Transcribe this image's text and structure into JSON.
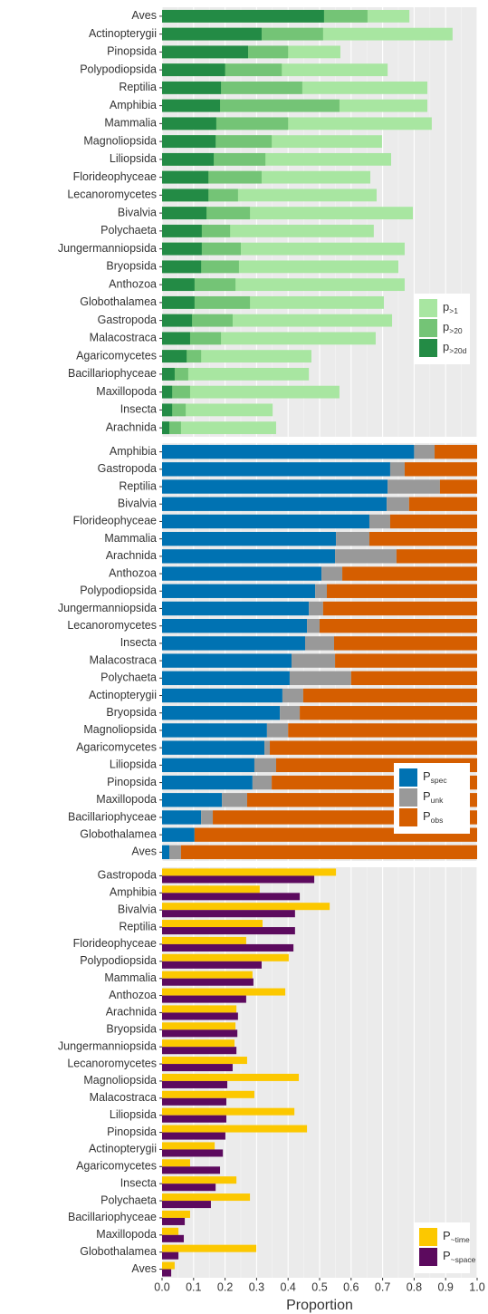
{
  "chart_data": [
    {
      "type": "bar",
      "barmode": "overlay",
      "legend": "bottom-right",
      "grid": true,
      "xlim": [
        0,
        1
      ],
      "categories": [
        "Aves",
        "Actinopterygii",
        "Pinopsida",
        "Polypodiopsida",
        "Reptilia",
        "Amphibia",
        "Mammalia",
        "Magnoliopsida",
        "Liliopsida",
        "Florideophyceae",
        "Lecanoromycetes",
        "Bivalvia",
        "Polychaeta",
        "Jungermanniopsida",
        "Bryopsida",
        "Anthozoa",
        "Globothalamea",
        "Gastropoda",
        "Malacostraca",
        "Agaricomycetes",
        "Bacillariophyceae",
        "Maxillopoda",
        "Insecta",
        "Arachnida"
      ],
      "series": [
        {
          "name": "p>1",
          "color": "#a8e6a1",
          "values": [
            0.785,
            0.922,
            0.566,
            0.716,
            0.842,
            0.842,
            0.856,
            0.698,
            0.727,
            0.661,
            0.681,
            0.796,
            0.672,
            0.77,
            0.75,
            0.77,
            0.704,
            0.73,
            0.678,
            0.474,
            0.466,
            0.563,
            0.351,
            0.362
          ]
        },
        {
          "name": "p>20",
          "color": "#74c476",
          "values": [
            0.652,
            0.511,
            0.4,
            0.38,
            0.445,
            0.563,
            0.4,
            0.348,
            0.328,
            0.316,
            0.241,
            0.279,
            0.216,
            0.25,
            0.244,
            0.233,
            0.279,
            0.224,
            0.187,
            0.124,
            0.083,
            0.089,
            0.075,
            0.06
          ]
        },
        {
          "name": "p>20d",
          "color": "#238b45",
          "values": [
            0.514,
            0.316,
            0.273,
            0.2,
            0.187,
            0.184,
            0.172,
            0.17,
            0.164,
            0.147,
            0.147,
            0.141,
            0.126,
            0.126,
            0.124,
            0.103,
            0.103,
            0.095,
            0.089,
            0.078,
            0.04,
            0.032,
            0.032,
            0.023
          ]
        }
      ]
    },
    {
      "type": "bar",
      "barmode": "stack",
      "legend": "bottom-right",
      "grid": true,
      "xlim": [
        0,
        1
      ],
      "categories": [
        "Amphibia",
        "Gastropoda",
        "Reptilia",
        "Bivalvia",
        "Florideophyceae",
        "Mammalia",
        "Arachnida",
        "Anthozoa",
        "Polypodiopsida",
        "Jungermanniopsida",
        "Lecanoromycetes",
        "Insecta",
        "Malacostraca",
        "Polychaeta",
        "Actinopterygii",
        "Bryopsida",
        "Magnoliopsida",
        "Agaricomycetes",
        "Liliopsida",
        "Pinopsida",
        "Maxillopoda",
        "Bacillariophyceae",
        "Globothalamea",
        "Aves"
      ],
      "series": [
        {
          "name": "Pspec",
          "color": "#0072b2",
          "values": [
            0.8,
            0.724,
            0.716,
            0.713,
            0.658,
            0.552,
            0.549,
            0.506,
            0.486,
            0.466,
            0.46,
            0.454,
            0.411,
            0.405,
            0.382,
            0.374,
            0.333,
            0.325,
            0.293,
            0.287,
            0.19,
            0.124,
            0.103,
            0.023
          ]
        },
        {
          "name": "Punk",
          "color": "#999999",
          "values": [
            0.065,
            0.046,
            0.166,
            0.071,
            0.066,
            0.106,
            0.195,
            0.066,
            0.037,
            0.045,
            0.04,
            0.092,
            0.138,
            0.195,
            0.066,
            0.063,
            0.067,
            0.017,
            0.069,
            0.061,
            0.08,
            0.037,
            0,
            0.037
          ]
        },
        {
          "name": "Pobs",
          "color": "#d55e00",
          "values": [
            0.135,
            0.23,
            0.118,
            0.216,
            0.276,
            0.342,
            0.256,
            0.428,
            0.477,
            0.489,
            0.5,
            0.454,
            0.451,
            0.4,
            0.552,
            0.563,
            0.6,
            0.658,
            0.638,
            0.652,
            0.73,
            0.839,
            0.897,
            0.94
          ]
        }
      ]
    },
    {
      "type": "bar",
      "barmode": "group",
      "legend": "bottom-right",
      "grid": true,
      "xlim": [
        0,
        1
      ],
      "x_label": "Proportion",
      "xticks": [
        {
          "value": 0,
          "label": "0.0"
        },
        0.1,
        0.2,
        0.3,
        0.4,
        0.5,
        0.6,
        0.7,
        0.8,
        0.9,
        {
          "value": 1,
          "label": "1.0"
        }
      ],
      "categories": [
        "Gastropoda",
        "Amphibia",
        "Bivalvia",
        "Reptilia",
        "Florideophyceae",
        "Polypodiopsida",
        "Mammalia",
        "Anthozoa",
        "Arachnida",
        "Bryopsida",
        "Jungermanniopsida",
        "Lecanoromycetes",
        "Magnoliopsida",
        "Malacostraca",
        "Liliopsida",
        "Pinopsida",
        "Actinopterygii",
        "Agaricomycetes",
        "Insecta",
        "Polychaeta",
        "Bacillariophyceae",
        "Maxillopoda",
        "Globothalamea",
        "Aves"
      ],
      "series": [
        {
          "name": "P~time",
          "color": "#fcc800",
          "values": [
            0.552,
            0.31,
            0.532,
            0.319,
            0.267,
            0.402,
            0.287,
            0.391,
            0.236,
            0.233,
            0.23,
            0.27,
            0.434,
            0.293,
            0.42,
            0.46,
            0.167,
            0.089,
            0.236,
            0.279,
            0.089,
            0.052,
            0.299,
            0.04
          ]
        },
        {
          "name": "P~space",
          "color": "#5c0a5e",
          "values": [
            0.483,
            0.437,
            0.422,
            0.422,
            0.417,
            0.316,
            0.29,
            0.267,
            0.241,
            0.239,
            0.236,
            0.224,
            0.207,
            0.204,
            0.204,
            0.201,
            0.193,
            0.184,
            0.17,
            0.155,
            0.072,
            0.069,
            0.052,
            0.029
          ]
        }
      ]
    }
  ]
}
